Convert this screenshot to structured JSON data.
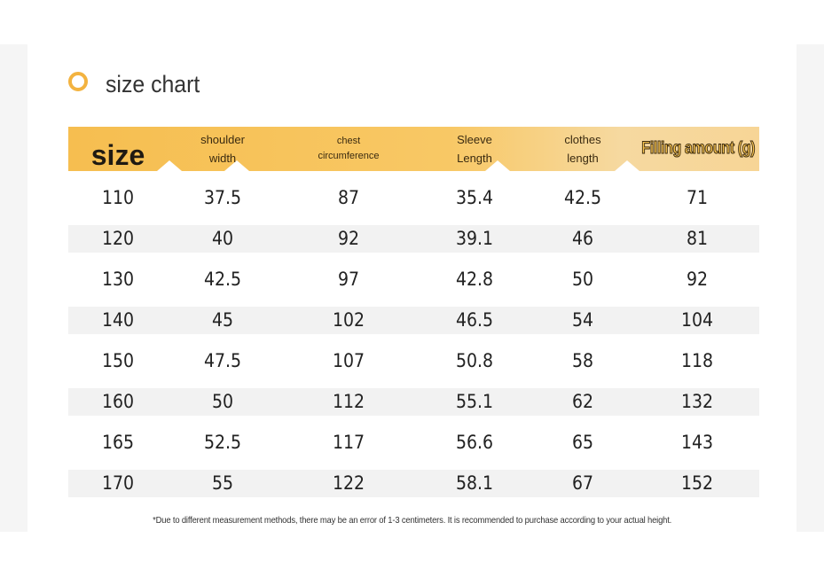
{
  "title": "size chart",
  "headers": {
    "size": "size",
    "shoulder_l1": "shoulder",
    "shoulder_l2": "width",
    "chest_l1": "chest",
    "chest_l2": "circumference",
    "sleeve_l1": "Sleeve",
    "sleeve_l2": "Length",
    "clothes_l1": "clothes",
    "clothes_l2": "length",
    "filling": "Filling amount (g)"
  },
  "rows": [
    {
      "size": "110",
      "shoulder": "37.5",
      "chest": "87",
      "sleeve": "35.4",
      "length": "42.5",
      "filling": "71"
    },
    {
      "size": "120",
      "shoulder": "40",
      "chest": "92",
      "sleeve": "39.1",
      "length": "46",
      "filling": "81"
    },
    {
      "size": "130",
      "shoulder": "42.5",
      "chest": "97",
      "sleeve": "42.8",
      "length": "50",
      "filling": "92"
    },
    {
      "size": "140",
      "shoulder": "45",
      "chest": "102",
      "sleeve": "46.5",
      "length": "54",
      "filling": "104"
    },
    {
      "size": "150",
      "shoulder": "47.5",
      "chest": "107",
      "sleeve": "50.8",
      "length": "58",
      "filling": "118"
    },
    {
      "size": "160",
      "shoulder": "50",
      "chest": "112",
      "sleeve": "55.1",
      "length": "62",
      "filling": "132"
    },
    {
      "size": "165",
      "shoulder": "52.5",
      "chest": "117",
      "sleeve": "56.6",
      "length": "65",
      "filling": "143"
    },
    {
      "size": "170",
      "shoulder": "55",
      "chest": "122",
      "sleeve": "58.1",
      "length": "67",
      "filling": "152"
    }
  ],
  "footnote": "*Due to different measurement methods, there may be an error of 1-3 centimeters. It is recommended to purchase according to your actual height.",
  "colors": {
    "accent": "#f6be50",
    "row_shade": "#f2f2f2",
    "ring": "#f3b340"
  }
}
